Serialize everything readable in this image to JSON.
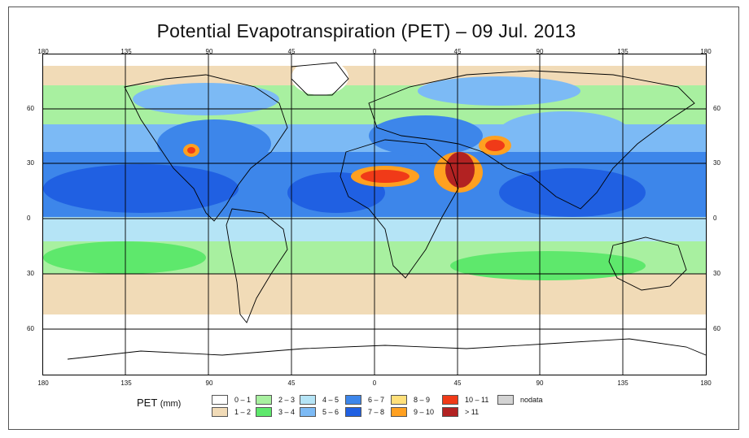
{
  "title": "Potential Evapotranspiration (PET) – 09 Jul. 2013",
  "longitude_ticks": [
    "180",
    "135",
    "90",
    "45",
    "0",
    "45",
    "90",
    "135",
    "180"
  ],
  "latitude_ticks": [
    "60",
    "30",
    "0",
    "30",
    "60"
  ],
  "legend": {
    "title": "PET",
    "unit": "(mm)",
    "items": [
      {
        "label": "0 – 1",
        "color": "#ffffff"
      },
      {
        "label": "1 – 2",
        "color": "#f1dbb7"
      },
      {
        "label": "2 – 3",
        "color": "#a8f0a0"
      },
      {
        "label": "3 – 4",
        "color": "#5ee86c"
      },
      {
        "label": "4 – 5",
        "color": "#b5e4f6"
      },
      {
        "label": "5 – 6",
        "color": "#7cbaf5"
      },
      {
        "label": "6 – 7",
        "color": "#3d86ea"
      },
      {
        "label": "7 – 8",
        "color": "#2060e2"
      },
      {
        "label": "8 – 9",
        "color": "#ffe07a"
      },
      {
        "label": "9 – 10",
        "color": "#ffa020"
      },
      {
        "label": "10 – 11",
        "color": "#f03a18"
      },
      {
        "label": "> 11",
        "color": "#b22222"
      },
      {
        "label": "nodata",
        "color": "#d3d3d3"
      }
    ]
  }
}
